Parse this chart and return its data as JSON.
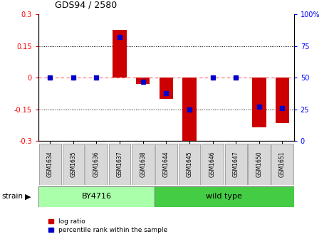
{
  "title": "GDS94 / 2580",
  "samples": [
    "GSM1634",
    "GSM1635",
    "GSM1636",
    "GSM1637",
    "GSM1638",
    "GSM1644",
    "GSM1645",
    "GSM1646",
    "GSM1647",
    "GSM1650",
    "GSM1651"
  ],
  "log_ratio": [
    0.0,
    0.0,
    0.0,
    0.225,
    -0.03,
    -0.1,
    -0.31,
    0.0,
    0.0,
    -0.235,
    -0.215
  ],
  "percentile_rank": [
    50,
    50,
    50,
    82,
    47,
    38,
    25,
    50,
    50,
    27,
    26
  ],
  "strain_groups": [
    {
      "label": "BY4716",
      "start": 0,
      "end": 5,
      "color": "#aaffaa"
    },
    {
      "label": "wild type",
      "start": 5,
      "end": 11,
      "color": "#44cc44"
    }
  ],
  "ylim_left": [
    -0.3,
    0.3
  ],
  "yticks_left": [
    -0.3,
    -0.15,
    0.0,
    0.15,
    0.3
  ],
  "ytick_labels_left": [
    "-0.3",
    "-0.15",
    "0",
    "0.15",
    "0.3"
  ],
  "yticks_right_vals": [
    0,
    25,
    50,
    75,
    100
  ],
  "ytick_labels_right": [
    "0",
    "25",
    "50",
    "75",
    "100%"
  ],
  "bar_color": "#cc0000",
  "dot_color": "#0000cc",
  "zero_line_color": "#ff6666",
  "dotted_line_color": "#000000",
  "background_color": "#ffffff",
  "bar_width": 0.6,
  "dot_size": 4,
  "left_color": "red",
  "right_color": "blue"
}
